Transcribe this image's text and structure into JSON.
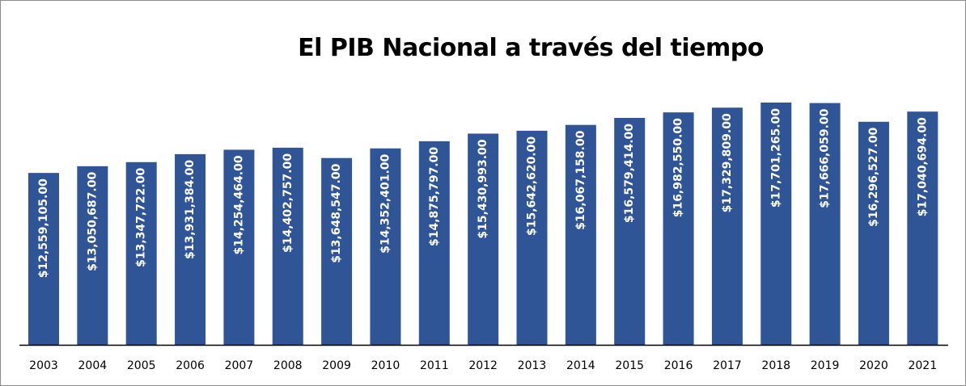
{
  "chart_data": {
    "type": "bar",
    "title": "El PIB Nacional a través del tiempo",
    "xlabel": "",
    "ylabel": "",
    "categories": [
      "2003",
      "2004",
      "2005",
      "2006",
      "2007",
      "2008",
      "2009",
      "2010",
      "2011",
      "2012",
      "2013",
      "2014",
      "2015",
      "2016",
      "2017",
      "2018",
      "2019",
      "2020",
      "2021"
    ],
    "values": [
      12559105,
      13050687,
      13347722,
      13931384,
      14254464,
      14402757,
      13648547,
      14352401,
      14875797,
      15430993,
      15642620,
      16067158,
      16579414,
      16982550,
      17329809,
      17701265,
      17666059,
      16296527,
      17040694
    ],
    "data_labels": [
      "$12,559,105.00",
      "$13,050,687.00",
      "$13,347,722.00",
      "$13,931,384.00",
      "$14,254,464.00",
      "$14,402,757.00",
      "$13,648,547.00",
      "$14,352,401.00",
      "$14,875,797.00",
      "$15,430,993.00",
      "$15,642,620.00",
      "$16,067,158.00",
      "$16,579,414.00",
      "$16,982,550.00",
      "$17,329,809.00",
      "$17,701,265.00",
      "$17,666,059.00",
      "$16,296,527.00",
      "$17,040,694.00"
    ],
    "ylim": [
      0,
      17701265
    ],
    "grid": false,
    "legend": "none",
    "colors": {
      "bar": "#2f5597",
      "bar_label": "#ffffff",
      "axis": "#000000"
    }
  }
}
